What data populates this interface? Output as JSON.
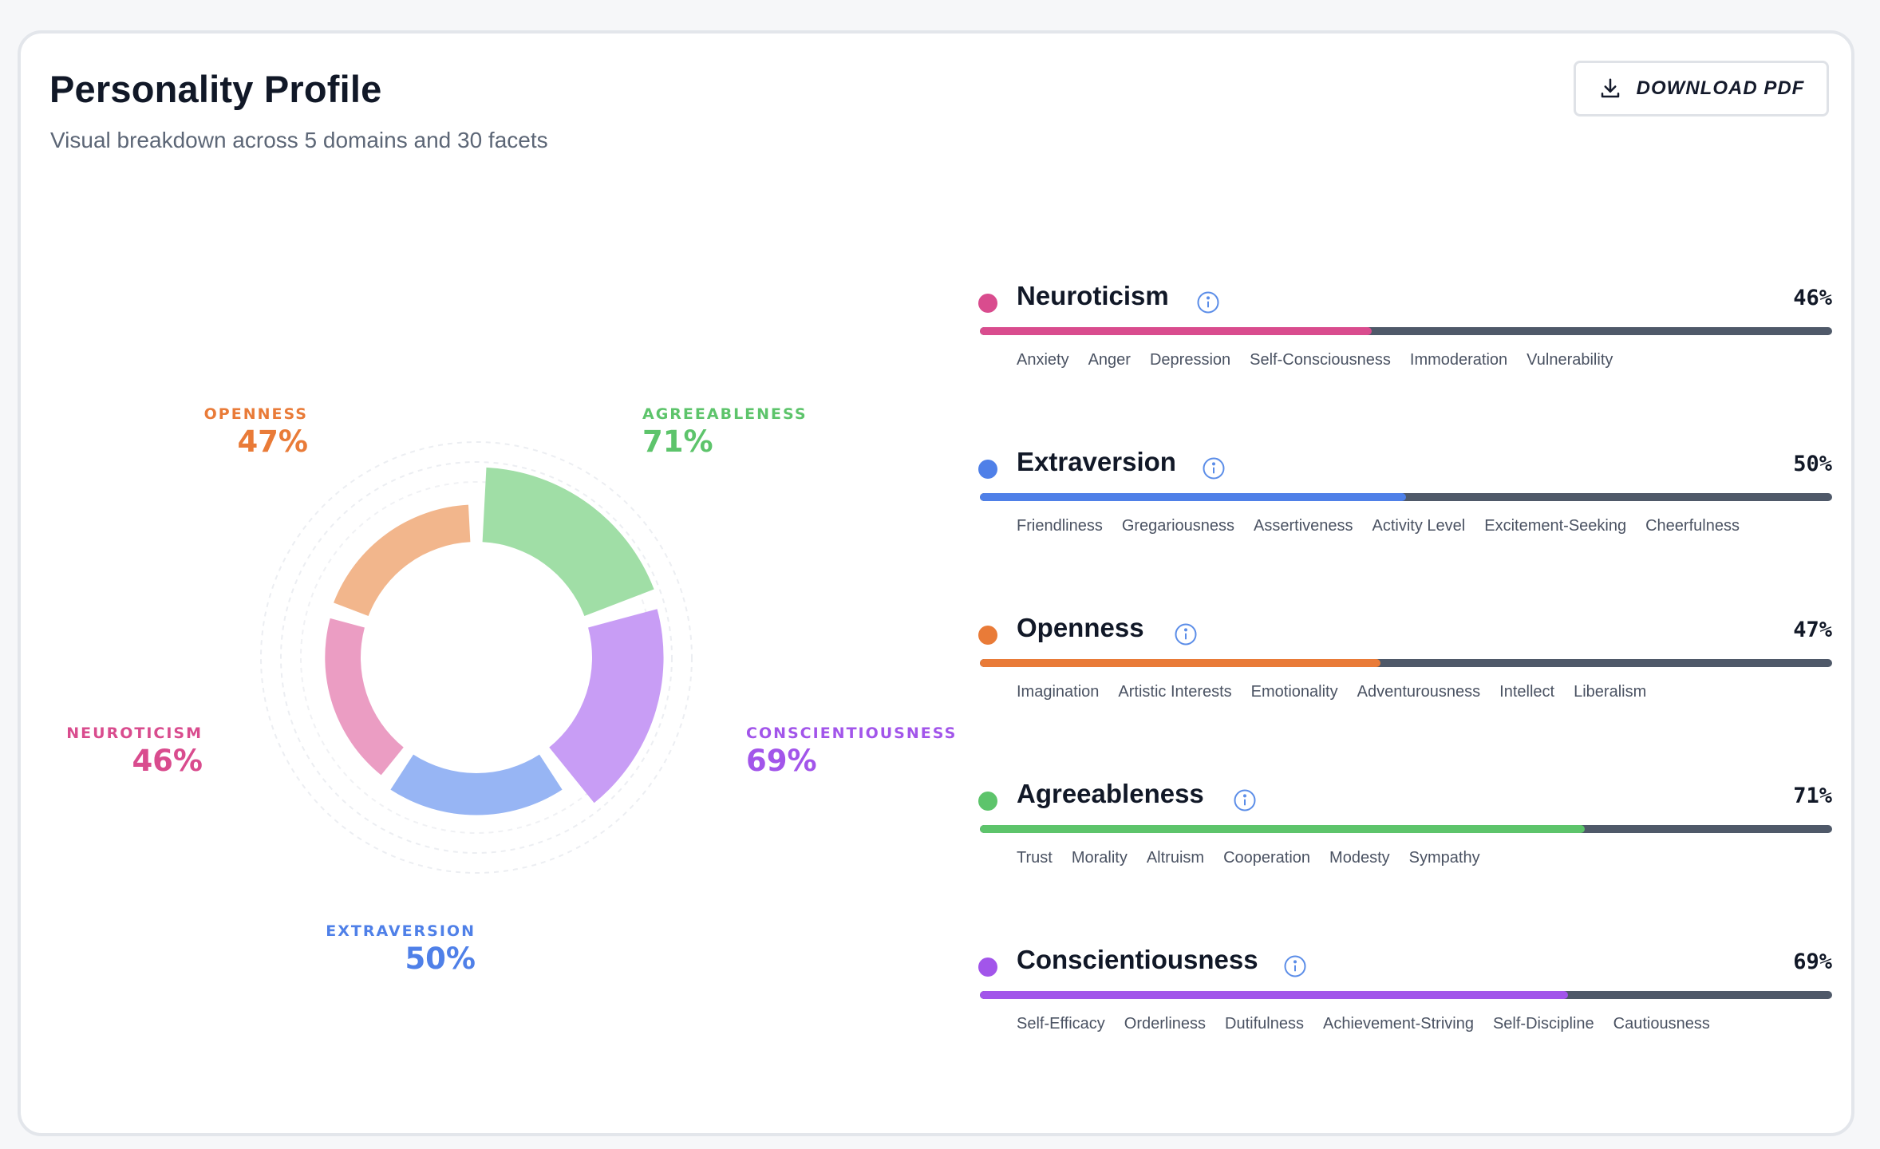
{
  "header": {
    "title": "Personality Profile",
    "subtitle": "Visual breakdown across 5 domains and 30 facets",
    "download_label": "DOWNLOAD PDF"
  },
  "icons": {
    "download": "download-icon",
    "info": "info-icon"
  },
  "donut": {
    "segments": [
      {
        "key": "agreeableness",
        "label": "AGREEABLENESS",
        "percent": "71%",
        "value": 71,
        "color": "#5dc46b",
        "fill": "#a0dea6"
      },
      {
        "key": "conscientiousness",
        "label": "CONSCIENTIOUSNESS",
        "percent": "69%",
        "value": 69,
        "color": "#a255ea",
        "fill": "#c89df5"
      },
      {
        "key": "extraversion",
        "label": "EXTRAVERSION",
        "percent": "50%",
        "value": 50,
        "color": "#4f80e8",
        "fill": "#97b5f4"
      },
      {
        "key": "neuroticism",
        "label": "NEUROTICISM",
        "percent": "46%",
        "value": 46,
        "color": "#d94c8e",
        "fill": "#eb9dc3"
      },
      {
        "key": "openness",
        "label": "OPENNESS",
        "percent": "47%",
        "value": 47,
        "color": "#e97b38",
        "fill": "#f2b68c"
      }
    ]
  },
  "domains": [
    {
      "name": "Neuroticism",
      "percent": "46%",
      "value": 46,
      "color": "#d94c8e",
      "facets": [
        "Anxiety",
        "Anger",
        "Depression",
        "Self-Consciousness",
        "Immoderation",
        "Vulnerability"
      ]
    },
    {
      "name": "Extraversion",
      "percent": "50%",
      "value": 50,
      "color": "#4f80e8",
      "facets": [
        "Friendliness",
        "Gregariousness",
        "Assertiveness",
        "Activity Level",
        "Excitement-Seeking",
        "Cheerfulness"
      ]
    },
    {
      "name": "Openness",
      "percent": "47%",
      "value": 47,
      "color": "#e97b38",
      "facets": [
        "Imagination",
        "Artistic Interests",
        "Emotionality",
        "Adventurousness",
        "Intellect",
        "Liberalism"
      ]
    },
    {
      "name": "Agreeableness",
      "percent": "71%",
      "value": 71,
      "color": "#5dc46b",
      "facets": [
        "Trust",
        "Morality",
        "Altruism",
        "Cooperation",
        "Modesty",
        "Sympathy"
      ]
    },
    {
      "name": "Conscientiousness",
      "percent": "69%",
      "value": 69,
      "color": "#a255ea",
      "facets": [
        "Self-Efficacy",
        "Orderliness",
        "Dutifulness",
        "Achievement-Striving",
        "Self-Discipline",
        "Cautiousness"
      ]
    }
  ]
}
